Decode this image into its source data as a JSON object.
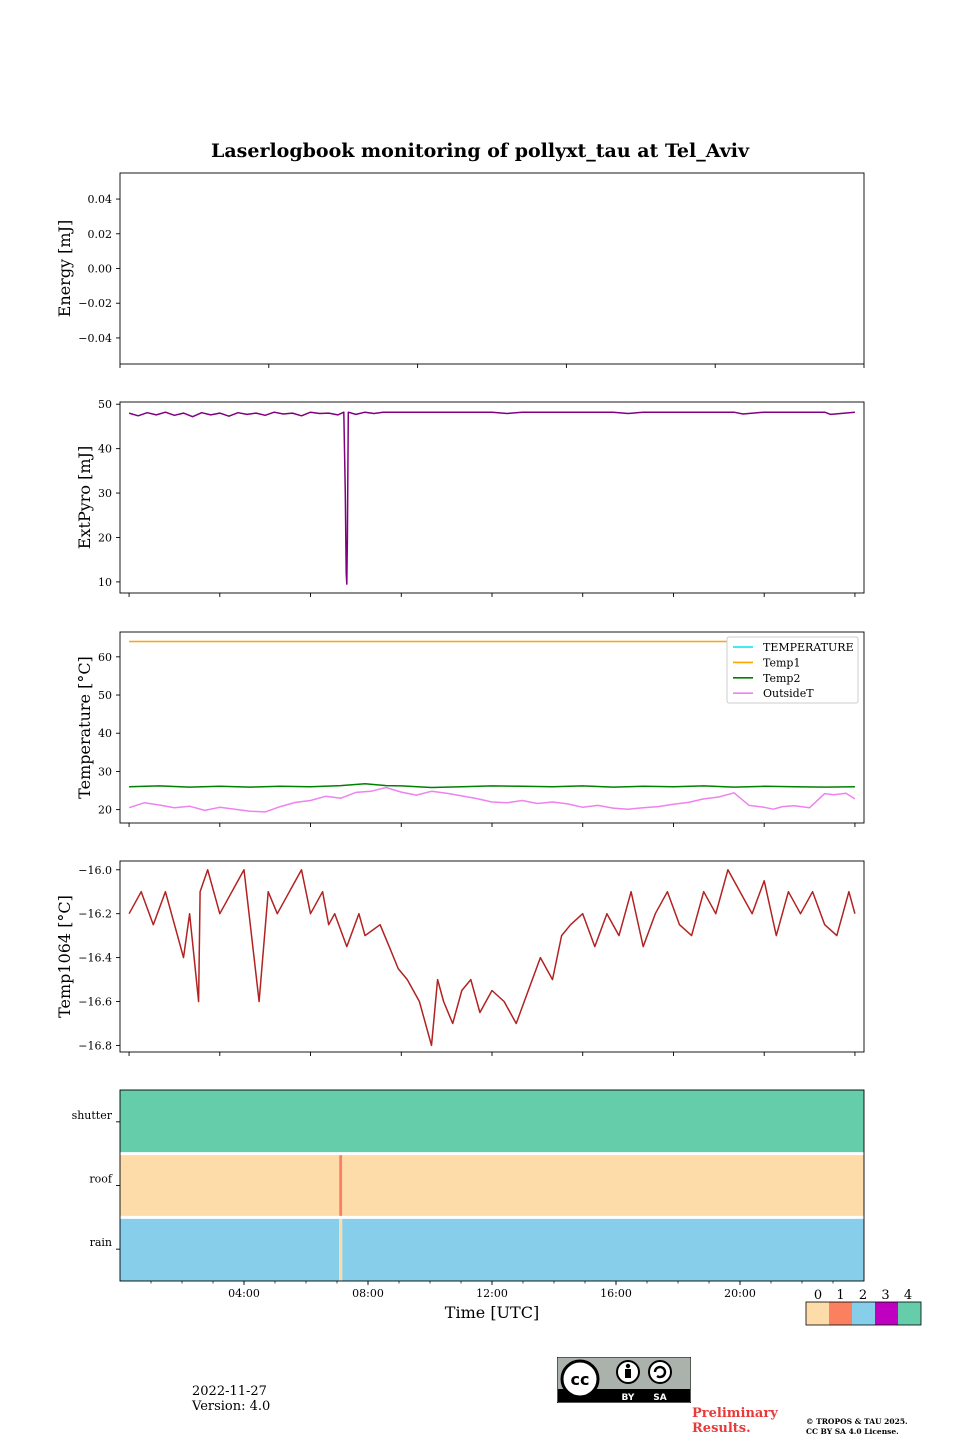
{
  "title": "Laserlogbook monitoring of pollyxt_tau at Tel_Aviv",
  "footer": {
    "date": "2022-11-27",
    "version": "Version: 4.0",
    "preliminary_line1": "Preliminary",
    "preliminary_line2": "Results.",
    "copyright_line1": "© TROPOS & TAU 2025.",
    "copyright_line2": "CC BY SA 4.0 License.",
    "license_badge": [
      "cc",
      "BY",
      "SA"
    ]
  },
  "colors": {
    "purple": "#800080",
    "TEMPERATURE": "#00e5ee",
    "Temp1": "#ffa500",
    "Temp2": "#008000",
    "OutsideT": "#ee82ee",
    "temp1064": "#b22222",
    "flag_0": "#fddcaa",
    "flag_1": "#fa8060",
    "flag_2": "#87ceeb",
    "flag_3": "#c000c0",
    "flag_4": "#66cdaa",
    "prelim": "#e83a3a"
  },
  "chart_data": [
    {
      "type": "line",
      "id": "energy",
      "ylabel": "Energy [mJ]",
      "ylim": [
        -0.055,
        0.055
      ],
      "yticks": [
        0.04,
        0.02,
        0.0,
        -0.02,
        -0.04
      ],
      "ytick_labels": [
        "0.04",
        "0.02",
        "0.00",
        "−0.02",
        "−0.04"
      ],
      "xlim_hours": [
        0.3,
        24.3
      ],
      "xticks_hours": [
        0.3,
        5.1,
        9.9,
        14.7,
        19.5,
        24.3
      ],
      "series": []
    },
    {
      "type": "line",
      "id": "extpyro",
      "ylabel": "ExtPyro [mJ]",
      "ylim": [
        7.5,
        50.5
      ],
      "yticks": [
        50,
        40,
        30,
        20,
        10
      ],
      "ytick_labels": [
        "50",
        "40",
        "30",
        "20",
        "10"
      ],
      "xlim_hours": [
        -0.3,
        24.3
      ],
      "xticks_hours": [
        0.0,
        3.0,
        6.0,
        9.0,
        12.0,
        15.0,
        18.0,
        21.0,
        24.0
      ],
      "series": [
        {
          "color": "#800080",
          "x": [
            0.0,
            0.3,
            0.6,
            0.9,
            1.2,
            1.5,
            1.8,
            2.1,
            2.4,
            2.7,
            3.0,
            3.3,
            3.6,
            3.9,
            4.2,
            4.5,
            4.8,
            5.1,
            5.4,
            5.7,
            6.0,
            6.3,
            6.6,
            6.9,
            7.1,
            7.15,
            7.18,
            7.2,
            7.22,
            7.25,
            7.5,
            7.8,
            8.1,
            8.4,
            9.0,
            10.0,
            11.0,
            12.0,
            12.5,
            13.0,
            14.0,
            15.0,
            16.0,
            16.5,
            17.0,
            18.0,
            19.0,
            20.0,
            20.3,
            21.0,
            22.0,
            23.0,
            23.2,
            24.0
          ],
          "y": [
            48.0,
            47.4,
            48.1,
            47.6,
            48.2,
            47.5,
            48.0,
            47.2,
            48.1,
            47.6,
            48.0,
            47.3,
            48.1,
            47.7,
            48.0,
            47.5,
            48.2,
            47.8,
            48.0,
            47.4,
            48.2,
            47.9,
            48.0,
            47.6,
            48.2,
            30.0,
            12.0,
            9.5,
            20.0,
            48.2,
            47.7,
            48.2,
            47.9,
            48.2,
            48.2,
            48.2,
            48.2,
            48.2,
            47.9,
            48.2,
            48.2,
            48.2,
            48.2,
            47.9,
            48.2,
            48.2,
            48.2,
            48.2,
            47.8,
            48.2,
            48.2,
            48.2,
            47.7,
            48.2
          ]
        }
      ]
    },
    {
      "type": "line",
      "id": "temperature",
      "ylabel": "Temperature [°C]",
      "ylim": [
        16.5,
        66.5
      ],
      "yticks": [
        60,
        50,
        40,
        30,
        20
      ],
      "ytick_labels": [
        "60",
        "50",
        "40",
        "30",
        "20"
      ],
      "xlim_hours": [
        -0.3,
        24.3
      ],
      "xticks_hours": [
        0.0,
        3.0,
        6.0,
        9.0,
        12.0,
        15.0,
        18.0,
        21.0,
        24.0
      ],
      "legend": {
        "placement": "top-right",
        "entries": [
          "TEMPERATURE",
          "Temp1",
          "Temp2",
          "OutsideT"
        ]
      },
      "series": [
        {
          "name": "TEMPERATURE",
          "color": "#00e5ee",
          "x": [],
          "y": []
        },
        {
          "name": "Temp1",
          "color": "#ffa500",
          "x": [
            0,
            24
          ],
          "y": [
            64.0,
            64.0
          ]
        },
        {
          "name": "Temp2",
          "color": "#008000",
          "x": [
            0,
            1,
            2,
            3,
            4,
            5,
            6,
            7,
            7.8,
            8.5,
            9,
            10,
            11,
            12,
            13,
            14,
            15,
            16,
            17,
            18,
            19,
            20,
            21,
            22,
            23,
            24
          ],
          "y": [
            26.0,
            26.2,
            25.9,
            26.1,
            25.9,
            26.1,
            26.0,
            26.3,
            26.8,
            26.3,
            26.2,
            25.8,
            26.0,
            26.2,
            26.1,
            26.0,
            26.2,
            25.9,
            26.1,
            26.0,
            26.2,
            25.9,
            26.1,
            26.0,
            25.9,
            26.0
          ]
        },
        {
          "name": "OutsideT",
          "color": "#ee82ee",
          "x": [
            0,
            0.5,
            1,
            1.5,
            2,
            2.5,
            3,
            3.5,
            4,
            4.5,
            5,
            5.5,
            6,
            6.5,
            7,
            7.5,
            8,
            8.5,
            9,
            9.5,
            10,
            10.5,
            11,
            11.5,
            12,
            12.5,
            13,
            13.5,
            14,
            14.5,
            15,
            15.5,
            16,
            16.5,
            17,
            17.5,
            18,
            18.5,
            19,
            19.5,
            20,
            20.5,
            21,
            21.3,
            21.6,
            22,
            22.5,
            23,
            23.3,
            23.7,
            24
          ],
          "y": [
            20.5,
            21.8,
            21.2,
            20.5,
            20.9,
            19.8,
            20.6,
            20.1,
            19.6,
            19.4,
            20.8,
            21.9,
            22.4,
            23.5,
            23.0,
            24.5,
            24.8,
            25.8,
            24.6,
            23.8,
            24.8,
            24.3,
            23.6,
            22.9,
            22.0,
            21.8,
            22.4,
            21.6,
            22.0,
            21.5,
            20.6,
            21.1,
            20.4,
            20.1,
            20.5,
            20.8,
            21.4,
            21.9,
            22.8,
            23.3,
            24.4,
            21.1,
            20.6,
            20.1,
            20.8,
            21.0,
            20.5,
            24.2,
            23.9,
            24.3,
            22.8
          ]
        }
      ]
    },
    {
      "type": "line",
      "id": "temp1064",
      "ylabel": "Temp1064 [°C]",
      "ylim": [
        -16.83,
        -15.96
      ],
      "yticks": [
        -16.0,
        -16.2,
        -16.4,
        -16.6,
        -16.8
      ],
      "ytick_labels": [
        "−16.0",
        "−16.2",
        "−16.4",
        "−16.6",
        "−16.8"
      ],
      "xlim_hours": [
        -0.3,
        24.3
      ],
      "xticks_hours": [
        0.0,
        3.0,
        6.0,
        9.0,
        12.0,
        15.0,
        18.0,
        21.0,
        24.0
      ],
      "series": [
        {
          "color": "#b22222",
          "x": [
            0,
            0.4,
            0.8,
            1.2,
            1.6,
            1.8,
            2.0,
            2.3,
            2.35,
            2.6,
            3.0,
            3.4,
            3.8,
            4.3,
            4.6,
            4.9,
            5.3,
            5.7,
            6.0,
            6.4,
            6.6,
            6.8,
            7.2,
            7.6,
            7.8,
            8.3,
            8.6,
            8.9,
            9.2,
            9.6,
            10.0,
            10.2,
            10.4,
            10.7,
            11.0,
            11.3,
            11.6,
            12.0,
            12.4,
            12.8,
            13.2,
            13.6,
            14.0,
            14.3,
            14.6,
            15.0,
            15.4,
            15.8,
            16.2,
            16.6,
            17.0,
            17.4,
            17.8,
            18.2,
            18.6,
            19.0,
            19.4,
            19.8,
            20.2,
            20.6,
            21.0,
            21.4,
            21.8,
            22.2,
            22.6,
            23.0,
            23.4,
            23.8,
            24.0
          ],
          "y": [
            -16.2,
            -16.1,
            -16.25,
            -16.1,
            -16.3,
            -16.4,
            -16.2,
            -16.6,
            -16.1,
            -16.0,
            -16.2,
            -16.1,
            -16.0,
            -16.6,
            -16.1,
            -16.2,
            -16.1,
            -16.0,
            -16.2,
            -16.1,
            -16.25,
            -16.2,
            -16.35,
            -16.2,
            -16.3,
            -16.25,
            -16.35,
            -16.45,
            -16.5,
            -16.6,
            -16.8,
            -16.5,
            -16.6,
            -16.7,
            -16.55,
            -16.5,
            -16.65,
            -16.55,
            -16.6,
            -16.7,
            -16.55,
            -16.4,
            -16.5,
            -16.3,
            -16.25,
            -16.2,
            -16.35,
            -16.2,
            -16.3,
            -16.1,
            -16.35,
            -16.2,
            -16.1,
            -16.25,
            -16.3,
            -16.1,
            -16.2,
            -16.0,
            -16.1,
            -16.2,
            -16.05,
            -16.3,
            -16.1,
            -16.2,
            -16.1,
            -16.25,
            -16.3,
            -16.1,
            -16.2
          ]
        }
      ]
    },
    {
      "type": "heatmap",
      "id": "flags",
      "rows": [
        "shutter",
        "roof",
        "rain"
      ],
      "xlabel": "Time [UTC]",
      "xlim_hours": [
        0,
        24
      ],
      "xticks_hours": [
        4,
        8,
        12,
        16,
        20
      ],
      "xtick_labels": [
        "04:00",
        "08:00",
        "12:00",
        "16:00",
        "20:00"
      ],
      "segments": {
        "shutter": [
          {
            "from": 0,
            "to": 24,
            "flag": 4
          }
        ],
        "roof": [
          {
            "from": 0,
            "to": 7.07,
            "flag": 0
          },
          {
            "from": 7.07,
            "to": 7.17,
            "flag": 1
          },
          {
            "from": 7.17,
            "to": 24,
            "flag": 0
          }
        ],
        "rain": [
          {
            "from": 0,
            "to": 7.07,
            "flag": 2
          },
          {
            "from": 7.07,
            "to": 7.17,
            "flag": 0
          },
          {
            "from": 7.17,
            "to": 24,
            "flag": 2
          }
        ]
      },
      "colorbar": {
        "labels": [
          "0",
          "1",
          "2",
          "3",
          "4"
        ]
      }
    }
  ]
}
